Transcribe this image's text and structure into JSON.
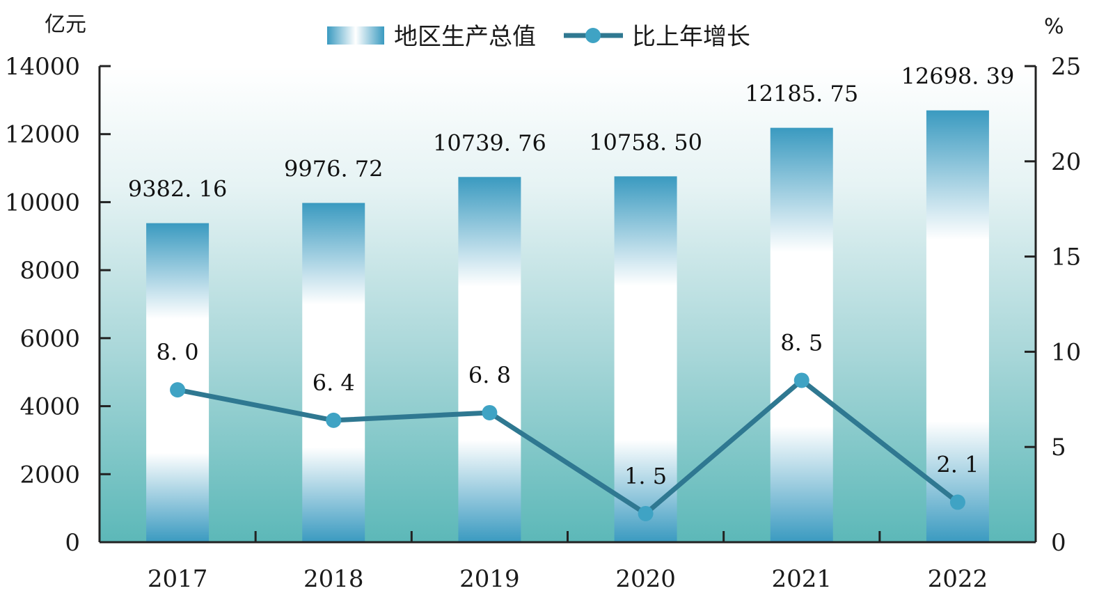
{
  "chart_data": {
    "type": "bar",
    "categories": [
      "2017",
      "2018",
      "2019",
      "2020",
      "2021",
      "2022"
    ],
    "series": [
      {
        "name": "地区生产总值",
        "type": "bar",
        "axis": "left",
        "values": [
          9382.16,
          9976.72,
          10739.76,
          10758.5,
          12185.75,
          12698.39
        ],
        "labels": [
          "9382. 16",
          "9976. 72",
          "10739. 76",
          "10758. 50",
          "12185. 75",
          "12698. 39"
        ]
      },
      {
        "name": "比上年增长",
        "type": "line",
        "axis": "right",
        "values": [
          8.0,
          6.4,
          6.8,
          1.5,
          8.5,
          2.1
        ],
        "labels": [
          "8. 0",
          "6. 4",
          "6. 8",
          "1. 5",
          "8. 5",
          "2. 1"
        ]
      }
    ],
    "left_axis": {
      "unit": "亿元",
      "ylim": [
        0,
        14000
      ],
      "ticks": [
        "0",
        "2000",
        "4000",
        "6000",
        "8000",
        "10000",
        "12000",
        "14000"
      ]
    },
    "right_axis": {
      "unit": "%",
      "ylim": [
        0,
        25
      ],
      "ticks": [
        "0",
        "5",
        "10",
        "15",
        "20",
        "25"
      ]
    },
    "legend_position": "top-center",
    "grid": false,
    "colors": {
      "bar_dark": "#3a9ac0",
      "bar_light": "#ffffff",
      "line": "#2f7891",
      "marker": "#3fa3c4",
      "background_top": "#ffffff",
      "background_bottom": "#5cb8b8",
      "axis": "#222222"
    }
  }
}
